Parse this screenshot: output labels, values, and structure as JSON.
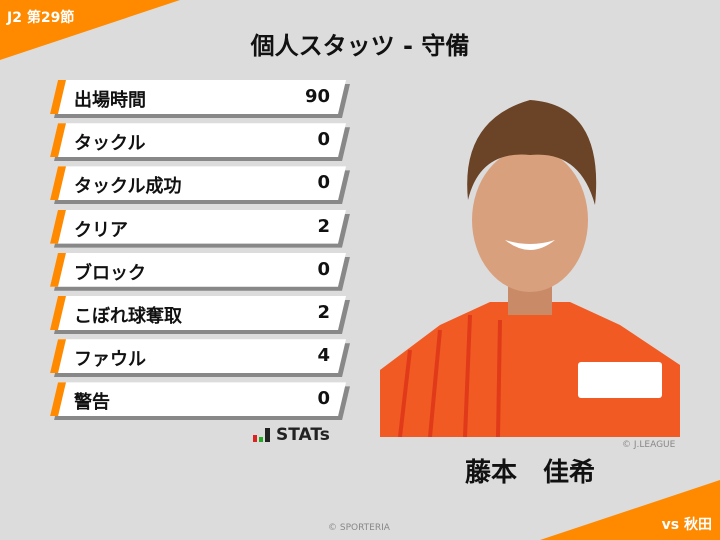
{
  "header": {
    "round": "J2 第29節",
    "title": "個人スタッツ - 守備",
    "opponent": "vs 秋田"
  },
  "stats": [
    {
      "label": "出場時間",
      "value": "90"
    },
    {
      "label": "タックル",
      "value": "0"
    },
    {
      "label": "タックル成功",
      "value": "0"
    },
    {
      "label": "クリア",
      "value": "2"
    },
    {
      "label": "ブロック",
      "value": "0"
    },
    {
      "label": "こぼれ球奪取",
      "value": "2"
    },
    {
      "label": "ファウル",
      "value": "4"
    },
    {
      "label": "警告",
      "value": "0"
    }
  ],
  "logo": {
    "text": "STATs"
  },
  "player": {
    "name": "藤本　佳希",
    "photo_credit": "© J.LEAGUE"
  },
  "footer": {
    "credit": "© SPORTERIA"
  },
  "colors": {
    "accent": "#ff8a00",
    "background": "#dcdcdc"
  }
}
